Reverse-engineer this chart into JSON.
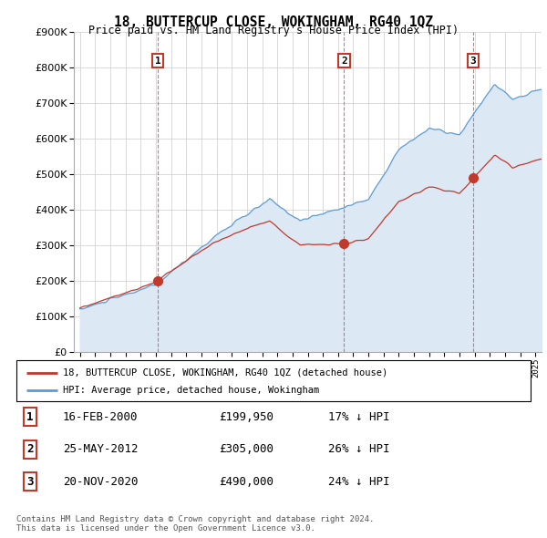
{
  "title": "18, BUTTERCUP CLOSE, WOKINGHAM, RG40 1QZ",
  "subtitle": "Price paid vs. HM Land Registry's House Price Index (HPI)",
  "ylim": [
    0,
    900000
  ],
  "yticks": [
    0,
    100000,
    200000,
    300000,
    400000,
    500000,
    600000,
    700000,
    800000,
    900000
  ],
  "hpi_color": "#5b9bd5",
  "hpi_fill_color": "#dce9f5",
  "price_color": "#c0392b",
  "sale_dates": [
    2000.12,
    2012.4,
    2020.9
  ],
  "sale_prices": [
    199950,
    305000,
    490000
  ],
  "sale_labels": [
    "1",
    "2",
    "3"
  ],
  "legend_entries": [
    "18, BUTTERCUP CLOSE, WOKINGHAM, RG40 1QZ (detached house)",
    "HPI: Average price, detached house, Wokingham"
  ],
  "table_rows": [
    [
      "1",
      "16-FEB-2000",
      "£199,950",
      "17% ↓ HPI"
    ],
    [
      "2",
      "25-MAY-2012",
      "£305,000",
      "26% ↓ HPI"
    ],
    [
      "3",
      "20-NOV-2020",
      "£490,000",
      "24% ↓ HPI"
    ]
  ],
  "footnote": "Contains HM Land Registry data © Crown copyright and database right 2024.\nThis data is licensed under the Open Government Licence v3.0.",
  "background_color": "#ffffff",
  "grid_color": "#cccccc",
  "vline_color": "#e06060"
}
